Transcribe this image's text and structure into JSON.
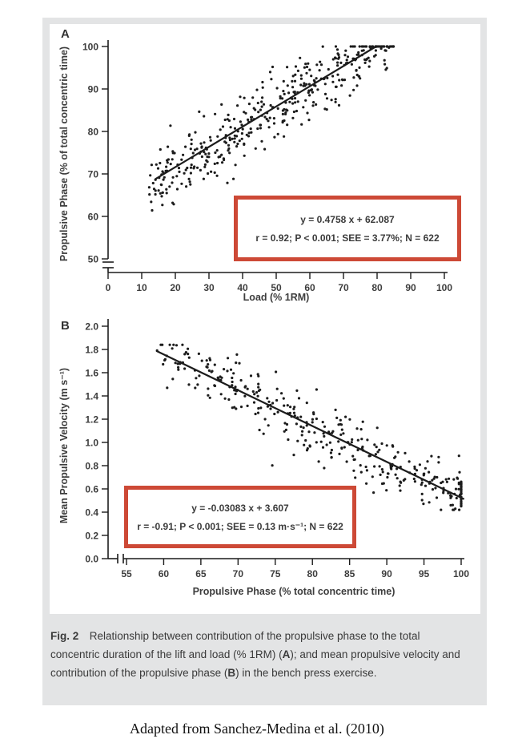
{
  "page": {
    "attribution": "Adapted from Sanchez-Medina et al. (2010)"
  },
  "figure": {
    "panel_background": "#e3e4e5",
    "plot_background": "#ffffff",
    "highlight_color": "#cd4936",
    "ink_color": "#1c1c1c",
    "caption": {
      "segments": [
        {
          "text": "Fig. 2",
          "bold": true
        },
        {
          "text": " Relationship between contribution of the propulsive phase to the total concentric duration of the lift and load (% 1RM) (",
          "bold": false
        },
        {
          "text": "A",
          "bold": true
        },
        {
          "text": "); and mean propulsive velocity and contribution of the propulsive phase (",
          "bold": false
        },
        {
          "text": "B",
          "bold": true
        },
        {
          "text": ") in the bench press exercise.",
          "bold": false
        }
      ]
    }
  },
  "chart_data": [
    {
      "type": "scatter",
      "panel_label": "A",
      "xlabel": "Load (% 1RM)",
      "ylabel": "Propulsive Phase (% of total concentric time)",
      "xlim": [
        0,
        100
      ],
      "ylim": [
        50,
        100
      ],
      "grid": false,
      "legend": "none",
      "axis_break": "y",
      "xticks": [
        {
          "v": 0,
          "label": "0"
        },
        {
          "v": 10,
          "label": "10"
        },
        {
          "v": 20,
          "label": "20"
        },
        {
          "v": 30,
          "label": "30"
        },
        {
          "v": 40,
          "label": "40"
        },
        {
          "v": 50,
          "label": "50"
        },
        {
          "v": 60,
          "label": "60"
        },
        {
          "v": 70,
          "label": "70"
        },
        {
          "v": 80,
          "label": "80"
        },
        {
          "v": 90,
          "label": "90"
        },
        {
          "v": 100,
          "label": "100"
        }
      ],
      "yticks": [
        {
          "v": 50,
          "label": "50"
        },
        {
          "v": 60,
          "label": "60"
        },
        {
          "v": 70,
          "label": "70"
        },
        {
          "v": 80,
          "label": "80"
        },
        {
          "v": 90,
          "label": "90"
        },
        {
          "v": 100,
          "label": "100"
        }
      ],
      "regression_line": {
        "slope": 0.4758,
        "intercept": 62.087,
        "x_start": 14,
        "x_end": 79.7
      },
      "annotation": {
        "line1": "y = 0.4758 x + 62.087",
        "line2": "r = 0.92; P < 0.001; SEE = 3.77%; N = 622"
      },
      "stats": {
        "r": 0.92,
        "p": "< 0.001",
        "see": "3.77%",
        "n": 622
      },
      "points_gen": {
        "seed": 20107,
        "n": 420,
        "x_min": 12,
        "x_max": 85,
        "x_pow": 1,
        "noise_sd": 3.6,
        "y_floor": 59.5,
        "y_ceiling": 100
      }
    },
    {
      "type": "scatter",
      "panel_label": "B",
      "xlabel": "Propulsive Phase (% total concentric time)",
      "ylabel": "Mean Propulsive Velocity (m s⁻¹)",
      "xlim": [
        55,
        100
      ],
      "ylim": [
        0,
        2
      ],
      "grid": false,
      "legend": "none",
      "axis_break": "x",
      "xticks": [
        {
          "v": 55,
          "label": "55"
        },
        {
          "v": 60,
          "label": "60"
        },
        {
          "v": 65,
          "label": "65"
        },
        {
          "v": 70,
          "label": "70"
        },
        {
          "v": 75,
          "label": "75"
        },
        {
          "v": 80,
          "label": "80"
        },
        {
          "v": 85,
          "label": "85"
        },
        {
          "v": 90,
          "label": "90"
        },
        {
          "v": 95,
          "label": "95"
        },
        {
          "v": 100,
          "label": "100"
        }
      ],
      "yticks": [
        {
          "v": 0,
          "label": "0.0"
        },
        {
          "v": 0.2,
          "label": "0.2"
        },
        {
          "v": 0.4,
          "label": "0.4"
        },
        {
          "v": 0.6,
          "label": "0.6"
        },
        {
          "v": 0.8,
          "label": "0.8"
        },
        {
          "v": 1,
          "label": "1.0"
        },
        {
          "v": 1.2,
          "label": "1.2"
        },
        {
          "v": 1.4,
          "label": "1.4"
        },
        {
          "v": 1.6,
          "label": "1.6"
        },
        {
          "v": 1.8,
          "label": "1.8"
        },
        {
          "v": 2,
          "label": "2.0"
        }
      ],
      "regression_line": {
        "slope": -0.03083,
        "intercept": 3.607,
        "x_start": 59,
        "x_end": 100.4
      },
      "annotation": {
        "line1": "y = -0.03083 x + 3.607",
        "line2": "r = -0.91; P < 0.001; SEE = 0.13 m·s⁻¹; N = 622"
      },
      "stats": {
        "r": -0.91,
        "p": "< 0.001",
        "see": "0.13 m·s⁻¹",
        "n": 622
      },
      "points_gen": {
        "seed": 911,
        "n": 340,
        "x_min": 59,
        "x_max": 100,
        "x_pow": 0.8,
        "noise_sd": 0.125,
        "y_floor": 0.42,
        "y_ceiling": 1.84,
        "edge_cluster": {
          "x": 100,
          "n": 40,
          "y_min": 0.43,
          "y_max": 0.67
        }
      }
    }
  ]
}
